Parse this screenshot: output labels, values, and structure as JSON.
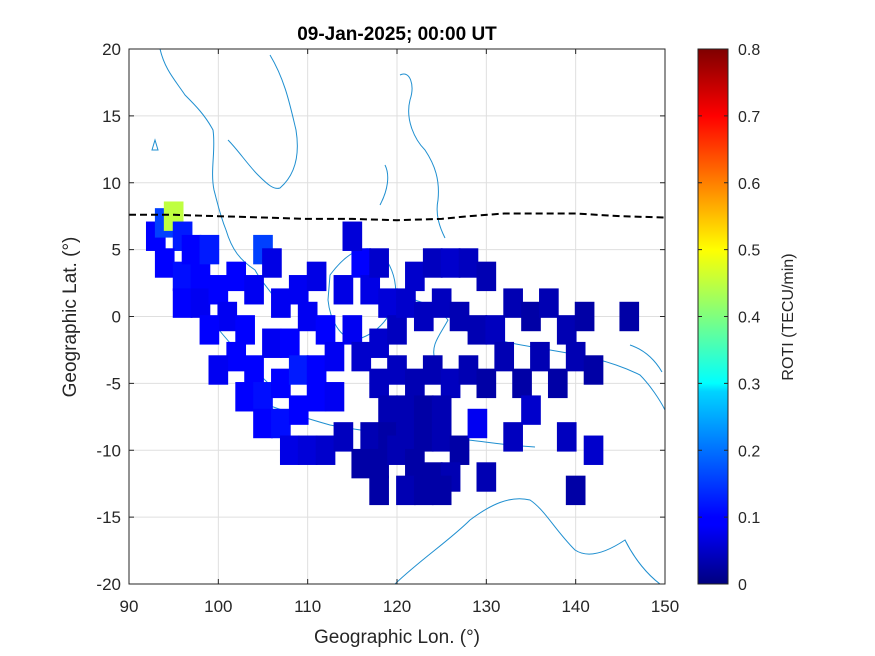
{
  "chart_data": {
    "type": "heatmap",
    "title": "09-Jan-2025; 00:00 UT",
    "xlabel": "Geographic Lon. (°)",
    "ylabel": "Geographic Lat. (°)",
    "xlim": [
      90,
      150
    ],
    "ylim": [
      -20,
      20
    ],
    "x_ticks": [
      "90",
      "100",
      "110",
      "120",
      "130",
      "140",
      "150"
    ],
    "y_ticks": [
      "20",
      "15",
      "10",
      "5",
      "0",
      "-5",
      "-10",
      "-15",
      "-20"
    ],
    "grid": true,
    "colorbar": {
      "label": "ROTI (TECU/min)",
      "range": [
        0,
        0.8
      ],
      "ticks": [
        "0",
        "0.1",
        "0.2",
        "0.3",
        "0.4",
        "0.5",
        "0.6",
        "0.7",
        "0.8"
      ],
      "colormap": "jet"
    },
    "dashed_line": {
      "color": "#000000",
      "points": [
        [
          90,
          7.6
        ],
        [
          95,
          7.6
        ],
        [
          100,
          7.5
        ],
        [
          105,
          7.4
        ],
        [
          110,
          7.3
        ],
        [
          115,
          7.3
        ],
        [
          120,
          7.2
        ],
        [
          125,
          7.3
        ],
        [
          128,
          7.5
        ],
        [
          132,
          7.7
        ],
        [
          140,
          7.7
        ],
        [
          145,
          7.5
        ],
        [
          150,
          7.4
        ]
      ]
    },
    "bins": [
      {
        "lon": 93,
        "lat": 6,
        "v": 0.1
      },
      {
        "lon": 94,
        "lat": 7,
        "v": 0.15
      },
      {
        "lon": 95,
        "lat": 7.5,
        "v": 0.45
      },
      {
        "lon": 96,
        "lat": 6,
        "v": 0.12
      },
      {
        "lon": 94,
        "lat": 4,
        "v": 0.1
      },
      {
        "lon": 96,
        "lat": 3,
        "v": 0.11
      },
      {
        "lon": 97,
        "lat": 5,
        "v": 0.1
      },
      {
        "lon": 98,
        "lat": 3,
        "v": 0.1
      },
      {
        "lon": 99,
        "lat": 5,
        "v": 0.12
      },
      {
        "lon": 96,
        "lat": 1,
        "v": 0.1
      },
      {
        "lon": 98,
        "lat": 1,
        "v": 0.09
      },
      {
        "lon": 100,
        "lat": 2,
        "v": 0.1
      },
      {
        "lon": 102,
        "lat": 3,
        "v": 0.1
      },
      {
        "lon": 101,
        "lat": 0,
        "v": 0.09
      },
      {
        "lon": 99,
        "lat": -1,
        "v": 0.1
      },
      {
        "lon": 103,
        "lat": -1,
        "v": 0.1
      },
      {
        "lon": 105,
        "lat": 5,
        "v": 0.15
      },
      {
        "lon": 104,
        "lat": 2,
        "v": 0.09
      },
      {
        "lon": 106,
        "lat": 4,
        "v": 0.08
      },
      {
        "lon": 107,
        "lat": 1,
        "v": 0.09
      },
      {
        "lon": 102,
        "lat": -3,
        "v": 0.1
      },
      {
        "lon": 100,
        "lat": -4,
        "v": 0.09
      },
      {
        "lon": 104,
        "lat": -4,
        "v": 0.1
      },
      {
        "lon": 106,
        "lat": -2,
        "v": 0.09
      },
      {
        "lon": 108,
        "lat": -2,
        "v": 0.1
      },
      {
        "lon": 109,
        "lat": 2,
        "v": 0.09
      },
      {
        "lon": 111,
        "lat": 3,
        "v": 0.08
      },
      {
        "lon": 110,
        "lat": 0,
        "v": 0.09
      },
      {
        "lon": 112,
        "lat": -1,
        "v": 0.1
      },
      {
        "lon": 103,
        "lat": -6,
        "v": 0.1
      },
      {
        "lon": 105,
        "lat": -6,
        "v": 0.11
      },
      {
        "lon": 107,
        "lat": -5,
        "v": 0.1
      },
      {
        "lon": 109,
        "lat": -4,
        "v": 0.12
      },
      {
        "lon": 111,
        "lat": -4,
        "v": 0.1
      },
      {
        "lon": 113,
        "lat": -3,
        "v": 0.09
      },
      {
        "lon": 105,
        "lat": -8,
        "v": 0.1
      },
      {
        "lon": 107,
        "lat": -8,
        "v": 0.11
      },
      {
        "lon": 109,
        "lat": -7,
        "v": 0.1
      },
      {
        "lon": 111,
        "lat": -6,
        "v": 0.1
      },
      {
        "lon": 113,
        "lat": -6,
        "v": 0.09
      },
      {
        "lon": 108,
        "lat": -10,
        "v": 0.08
      },
      {
        "lon": 110,
        "lat": -10,
        "v": 0.07
      },
      {
        "lon": 112,
        "lat": -10,
        "v": 0.06
      },
      {
        "lon": 114,
        "lat": -9,
        "v": 0.05
      },
      {
        "lon": 115,
        "lat": -1,
        "v": 0.09
      },
      {
        "lon": 114,
        "lat": 2,
        "v": 0.08
      },
      {
        "lon": 116,
        "lat": 4,
        "v": 0.1
      },
      {
        "lon": 115,
        "lat": 6,
        "v": 0.07
      },
      {
        "lon": 117,
        "lat": 2,
        "v": 0.08
      },
      {
        "lon": 118,
        "lat": 4,
        "v": 0.06
      },
      {
        "lon": 119,
        "lat": 1,
        "v": 0.07
      },
      {
        "lon": 116,
        "lat": -3,
        "v": 0.06
      },
      {
        "lon": 118,
        "lat": -2,
        "v": 0.06
      },
      {
        "lon": 120,
        "lat": -1,
        "v": 0.05
      },
      {
        "lon": 121,
        "lat": 1,
        "v": 0.06
      },
      {
        "lon": 122,
        "lat": 3,
        "v": 0.06
      },
      {
        "lon": 124,
        "lat": 4,
        "v": 0.05
      },
      {
        "lon": 126,
        "lat": 4,
        "v": 0.06
      },
      {
        "lon": 128,
        "lat": 4,
        "v": 0.05
      },
      {
        "lon": 130,
        "lat": 3,
        "v": 0.04
      },
      {
        "lon": 123,
        "lat": 0,
        "v": 0.05
      },
      {
        "lon": 125,
        "lat": 1,
        "v": 0.05
      },
      {
        "lon": 127,
        "lat": 0,
        "v": 0.04
      },
      {
        "lon": 129,
        "lat": -1,
        "v": 0.04
      },
      {
        "lon": 131,
        "lat": -1,
        "v": 0.05
      },
      {
        "lon": 133,
        "lat": 1,
        "v": 0.04
      },
      {
        "lon": 135,
        "lat": 0,
        "v": 0.03
      },
      {
        "lon": 137,
        "lat": 1,
        "v": 0.04
      },
      {
        "lon": 139,
        "lat": -1,
        "v": 0.04
      },
      {
        "lon": 141,
        "lat": 0,
        "v": 0.03
      },
      {
        "lon": 118,
        "lat": -5,
        "v": 0.05
      },
      {
        "lon": 120,
        "lat": -4,
        "v": 0.05
      },
      {
        "lon": 122,
        "lat": -5,
        "v": 0.04
      },
      {
        "lon": 124,
        "lat": -4,
        "v": 0.04
      },
      {
        "lon": 126,
        "lat": -5,
        "v": 0.05
      },
      {
        "lon": 128,
        "lat": -4,
        "v": 0.04
      },
      {
        "lon": 130,
        "lat": -5,
        "v": 0.03
      },
      {
        "lon": 132,
        "lat": -3,
        "v": 0.04
      },
      {
        "lon": 134,
        "lat": -5,
        "v": 0.03
      },
      {
        "lon": 136,
        "lat": -3,
        "v": 0.04
      },
      {
        "lon": 138,
        "lat": -5,
        "v": 0.03
      },
      {
        "lon": 140,
        "lat": -3,
        "v": 0.04
      },
      {
        "lon": 142,
        "lat": -4,
        "v": 0.03
      },
      {
        "lon": 119,
        "lat": -7,
        "v": 0.04
      },
      {
        "lon": 121,
        "lat": -7,
        "v": 0.04
      },
      {
        "lon": 123,
        "lat": -7,
        "v": 0.03
      },
      {
        "lon": 125,
        "lat": -7,
        "v": 0.04
      },
      {
        "lon": 117,
        "lat": -9,
        "v": 0.04
      },
      {
        "lon": 119,
        "lat": -9,
        "v": 0.03
      },
      {
        "lon": 121,
        "lat": -9,
        "v": 0.04
      },
      {
        "lon": 123,
        "lat": -9,
        "v": 0.03
      },
      {
        "lon": 125,
        "lat": -9,
        "v": 0.04
      },
      {
        "lon": 127,
        "lat": -10,
        "v": 0.03
      },
      {
        "lon": 116,
        "lat": -11,
        "v": 0.03
      },
      {
        "lon": 118,
        "lat": -11,
        "v": 0.03
      },
      {
        "lon": 120,
        "lat": -10,
        "v": 0.04
      },
      {
        "lon": 122,
        "lat": -11,
        "v": 0.03
      },
      {
        "lon": 124,
        "lat": -12,
        "v": 0.03
      },
      {
        "lon": 126,
        "lat": -12,
        "v": 0.04
      },
      {
        "lon": 118,
        "lat": -13,
        "v": 0.03
      },
      {
        "lon": 121,
        "lat": -13,
        "v": 0.04
      },
      {
        "lon": 123,
        "lat": -13,
        "v": 0.03
      },
      {
        "lon": 125,
        "lat": -13,
        "v": 0.03
      },
      {
        "lon": 130,
        "lat": -12,
        "v": 0.04
      },
      {
        "lon": 129,
        "lat": -8,
        "v": 0.09
      },
      {
        "lon": 133,
        "lat": -9,
        "v": 0.05
      },
      {
        "lon": 135,
        "lat": -7,
        "v": 0.06
      },
      {
        "lon": 139,
        "lat": -9,
        "v": 0.05
      },
      {
        "lon": 142,
        "lat": -10,
        "v": 0.06
      },
      {
        "lon": 140,
        "lat": -13,
        "v": 0.03
      },
      {
        "lon": 146,
        "lat": 0,
        "v": 0.03
      }
    ]
  }
}
